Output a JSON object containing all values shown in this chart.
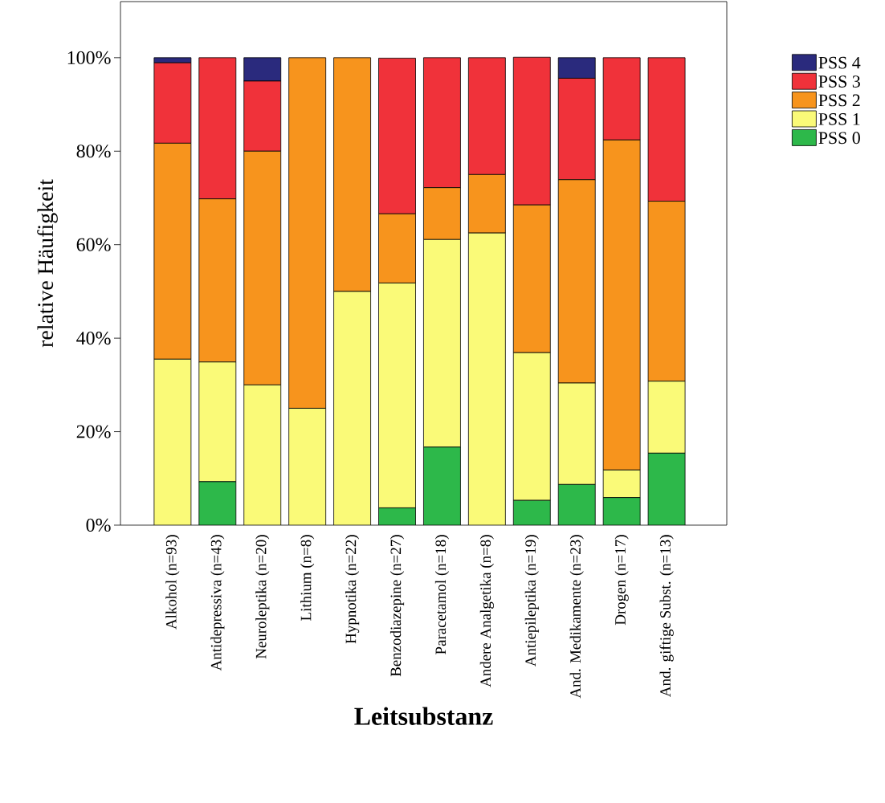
{
  "chart_data": {
    "type": "bar",
    "stacked": true,
    "xlabel": "Leitsubstanz",
    "ylabel": "relative Häufigkeit",
    "categories": [
      "Alkohol (n=93)",
      "Antidepressiva (n=43)",
      "Neuroleptika (n=20)",
      "Lithium (n=8)",
      "Hypnotika (n=22)",
      "Benzodiazepine (n=27)",
      "Paracetamol (n=18)",
      "Andere Analgetika (n=8)",
      "Antiepileptika (n=19)",
      "And. Medikamente (n=23)",
      "Drogen (n=17)",
      "And. giftige Subst. (n=13)"
    ],
    "series": [
      {
        "name": "PSS 0",
        "color": "#2db84a",
        "values": [
          0,
          9.3,
          0,
          0,
          0,
          3.7,
          16.7,
          0,
          5.3,
          8.7,
          5.9,
          15.4
        ]
      },
      {
        "name": "PSS 1",
        "color": "#fafa78",
        "values": [
          35.5,
          25.6,
          30,
          25,
          50,
          48.1,
          44.4,
          62.5,
          31.6,
          21.7,
          5.9,
          15.4
        ]
      },
      {
        "name": "PSS 2",
        "color": "#f7941d",
        "values": [
          46.2,
          34.9,
          50,
          75,
          50,
          14.8,
          11.1,
          12.5,
          31.6,
          43.5,
          70.6,
          38.5
        ]
      },
      {
        "name": "PSS 3",
        "color": "#f0323a",
        "values": [
          17.2,
          30.2,
          15,
          0,
          0,
          33.3,
          27.8,
          25,
          31.6,
          21.7,
          17.6,
          30.7
        ]
      },
      {
        "name": "PSS 4",
        "color": "#2a2a7d",
        "values": [
          1.1,
          0,
          5,
          0,
          0,
          0,
          0,
          0,
          0,
          4.4,
          0,
          0
        ]
      }
    ],
    "ylim": [
      0,
      112
    ],
    "yticks": [
      {
        "value": 0,
        "label": "0%"
      },
      {
        "value": 20,
        "label": "20%"
      },
      {
        "value": 40,
        "label": "40%"
      },
      {
        "value": 60,
        "label": "60%"
      },
      {
        "value": 80,
        "label": "80%"
      },
      {
        "value": 100,
        "label": "100%"
      }
    ],
    "grid": false,
    "legend": "right"
  }
}
